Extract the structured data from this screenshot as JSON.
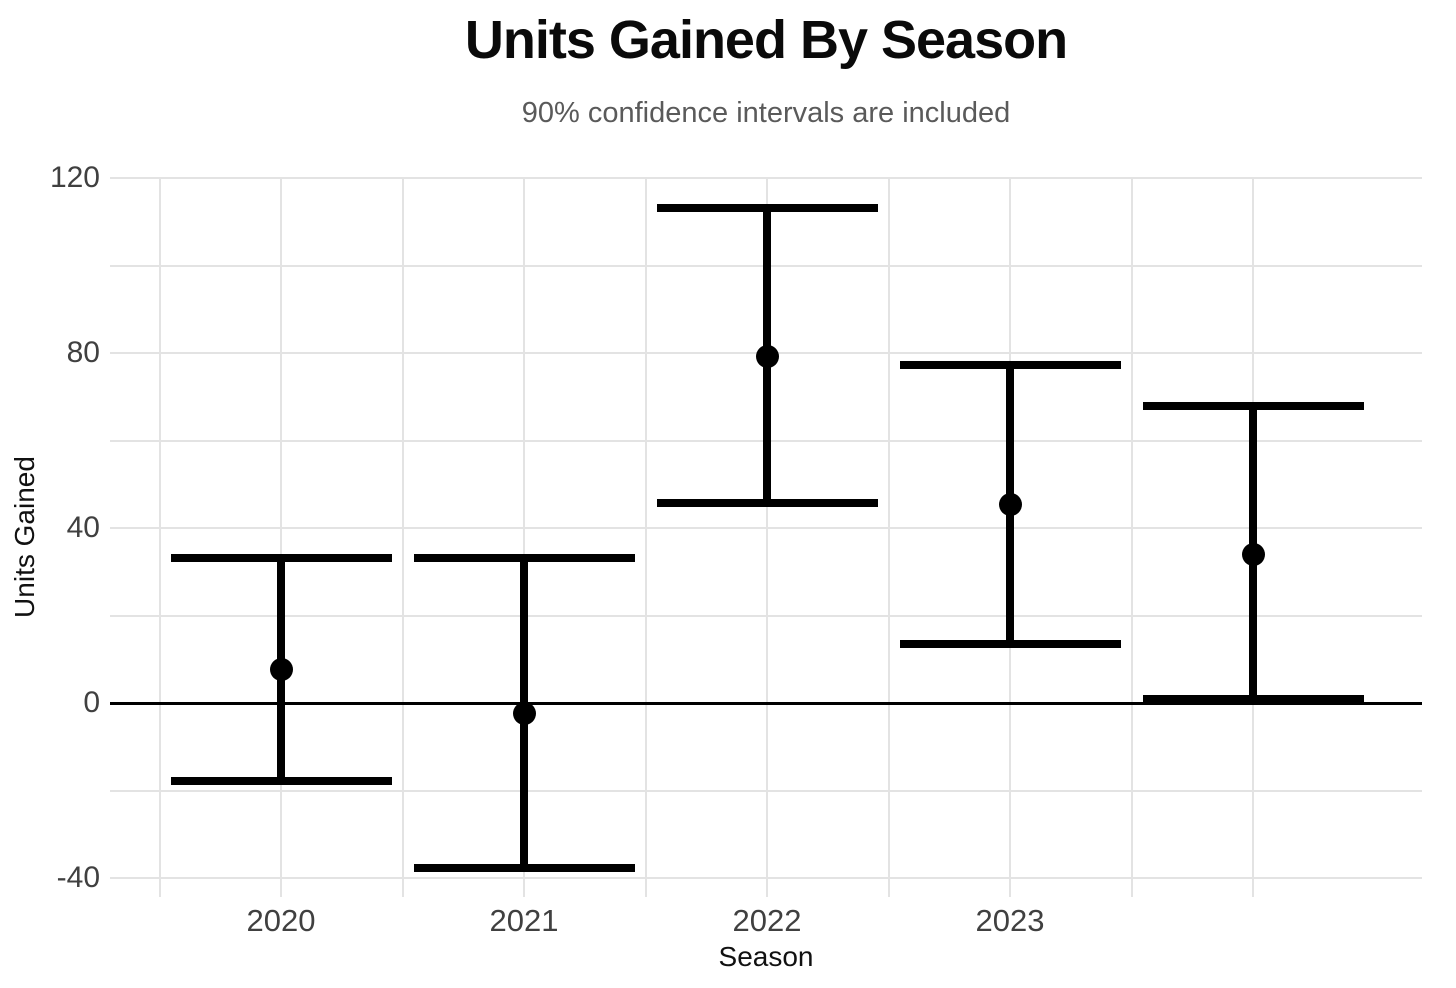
{
  "chart_data": {
    "type": "scatter",
    "style": "pointrange-errorbar",
    "title": "Units Gained By Season",
    "subtitle": "90% confidence intervals are included",
    "xlabel": "Season",
    "ylabel": "Units Gained",
    "confidence_level": "90%",
    "categories": [
      "2020",
      "2021",
      "2022",
      "2023",
      ""
    ],
    "series": [
      {
        "name": "Units Gained",
        "means": [
          7.7,
          -2.3,
          79.3,
          45.5,
          34.1
        ],
        "ci_lower": [
          -17.8,
          -37.5,
          45.8,
          13.6,
          0.9
        ],
        "ci_upper": [
          33.1,
          33.1,
          113.1,
          77.4,
          67.9
        ]
      }
    ],
    "yticks": [
      120,
      80,
      40,
      0,
      -40
    ],
    "yticks_minor": [
      100,
      60,
      20,
      -20
    ],
    "ylim": [
      -44.2,
      120
    ],
    "grid": true,
    "zero_line": true,
    "legend": "none",
    "colors": {
      "points_and_bars": "#000000",
      "zero_line": "#000000",
      "gridline": "#e3e3e3",
      "tick_label": "#404040",
      "axis_title": "#111111",
      "title": "#0a0a0a",
      "subtitle": "#5a5a5a",
      "background": "#ffffff"
    }
  }
}
